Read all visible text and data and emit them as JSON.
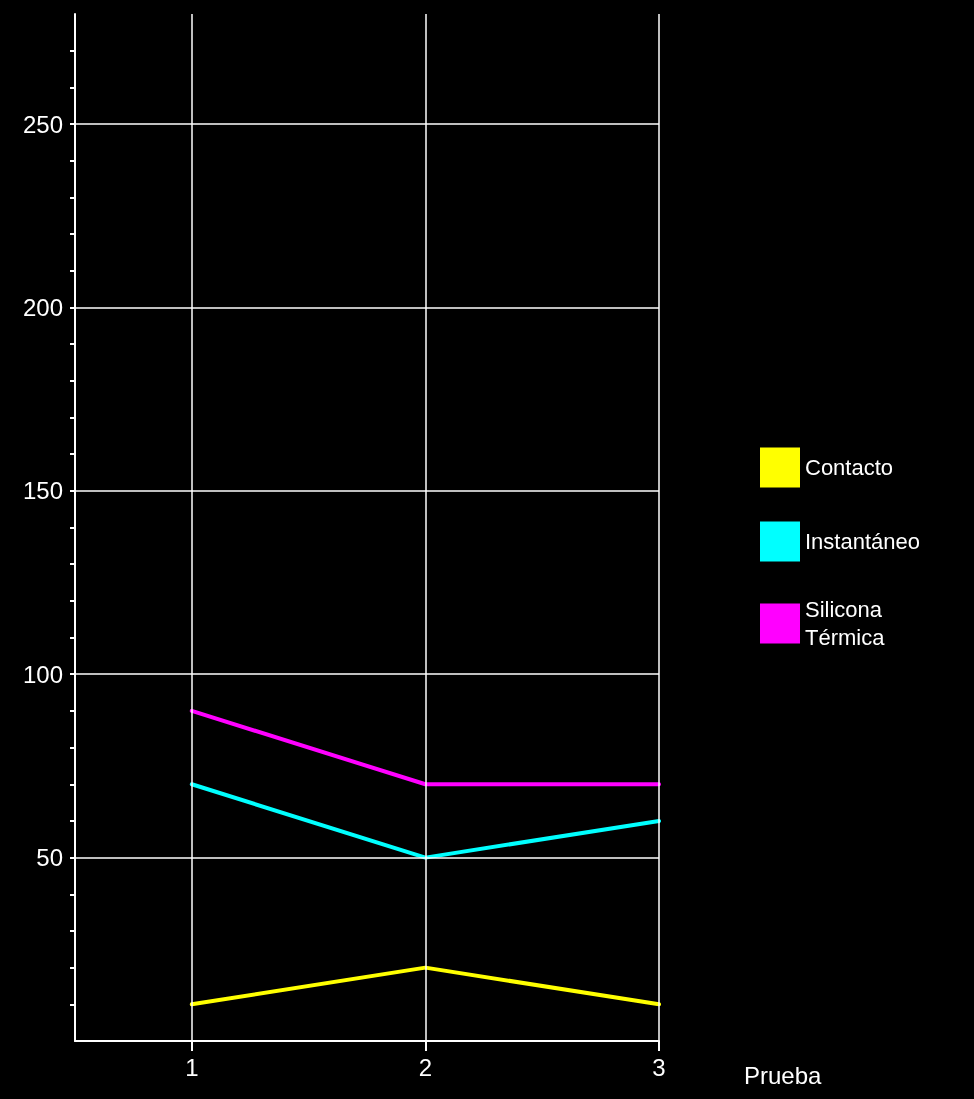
{
  "chart_data": {
    "type": "line",
    "xlabel": "Prueba",
    "x": [
      1,
      2,
      3
    ],
    "series": [
      {
        "name": "Contacto",
        "color": "#ffff00",
        "values": [
          10,
          20,
          10
        ]
      },
      {
        "name": "Instantáneo",
        "color": "#00ffff",
        "values": [
          70,
          50,
          60
        ]
      },
      {
        "name": "Silicona Térmica",
        "color": "#ff00ff",
        "values": [
          90,
          70,
          70
        ]
      }
    ],
    "xlim": [
      0.5,
      3
    ],
    "xticks": [
      1,
      2,
      3
    ],
    "ylim": [
      0,
      280
    ],
    "yticks": [
      {
        "value": 10,
        "label": null
      },
      {
        "value": 20,
        "label": null
      },
      {
        "value": 30,
        "label": null
      },
      {
        "value": 40,
        "label": null
      },
      50,
      {
        "value": 60,
        "label": null
      },
      {
        "value": 70,
        "label": null
      },
      {
        "value": 80,
        "label": null
      },
      {
        "value": 90,
        "label": null
      },
      100,
      {
        "value": 110,
        "label": null
      },
      {
        "value": 120,
        "label": null
      },
      {
        "value": 130,
        "label": null
      },
      {
        "value": 140,
        "label": null
      },
      150,
      {
        "value": 160,
        "label": null
      },
      {
        "value": 170,
        "label": null
      },
      {
        "value": 180,
        "label": null
      },
      {
        "value": 190,
        "label": null
      },
      200,
      {
        "value": 210,
        "label": null
      },
      {
        "value": 220,
        "label": null
      },
      {
        "value": 230,
        "label": null
      },
      {
        "value": 240,
        "label": null
      },
      250,
      {
        "value": 260,
        "label": null
      },
      {
        "value": 270,
        "label": null
      }
    ],
    "grid": true,
    "legend": "right",
    "marker": "none",
    "line_style": "solid"
  }
}
